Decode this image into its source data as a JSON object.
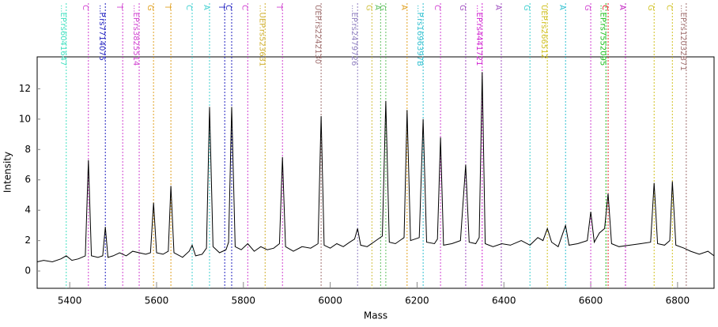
{
  "chart_data": {
    "type": "line",
    "x_label": "Mass",
    "y_label": "Intensity",
    "xlim": [
      5325,
      6884
    ],
    "ylim": [
      -1.14,
      14.1
    ],
    "xticks": [
      5400,
      5600,
      5800,
      6000,
      6200,
      6400,
      6600,
      6800
    ],
    "yticks": [
      0,
      2,
      4,
      6,
      8,
      10,
      12
    ],
    "series": [
      {
        "color": "#000000",
        "x": [
          5325,
          5340,
          5360,
          5380,
          5392,
          5405,
          5420,
          5436,
          5443,
          5450,
          5465,
          5476,
          5482,
          5488,
          5500,
          5515,
          5530,
          5545,
          5560,
          5575,
          5586,
          5593,
          5600,
          5615,
          5627,
          5633,
          5640,
          5660,
          5675,
          5682,
          5690,
          5705,
          5715,
          5722,
          5730,
          5745,
          5760,
          5766,
          5773,
          5781,
          5795,
          5810,
          5825,
          5840,
          5855,
          5870,
          5883,
          5890,
          5897,
          5915,
          5935,
          5955,
          5972,
          5979,
          5986,
          6000,
          6015,
          6030,
          6045,
          6056,
          6063,
          6070,
          6085,
          6100,
          6120,
          6128,
          6136,
          6150,
          6170,
          6177,
          6185,
          6205,
          6214,
          6222,
          6240,
          6247,
          6254,
          6261,
          6280,
          6300,
          6312,
          6320,
          6335,
          6343,
          6350,
          6357,
          6375,
          6395,
          6415,
          6440,
          6460,
          6478,
          6490,
          6500,
          6510,
          6525,
          6542,
          6550,
          6570,
          6592,
          6600,
          6608,
          6620,
          6632,
          6640,
          6648,
          6665,
          6690,
          6715,
          6738,
          6746,
          6754,
          6770,
          6782,
          6788,
          6796,
          6815,
          6830,
          6850,
          6870,
          6884
        ],
        "values": [
          0.6,
          0.7,
          0.6,
          0.8,
          1.0,
          0.7,
          0.8,
          1.0,
          7.3,
          1.0,
          0.9,
          1.0,
          2.9,
          0.9,
          1.0,
          1.2,
          1.0,
          1.3,
          1.2,
          1.1,
          1.2,
          4.5,
          1.2,
          1.1,
          1.3,
          5.6,
          1.2,
          0.9,
          1.3,
          1.7,
          1.0,
          1.1,
          1.5,
          10.8,
          1.6,
          1.2,
          1.4,
          1.9,
          10.8,
          1.6,
          1.4,
          1.8,
          1.3,
          1.6,
          1.4,
          1.5,
          1.8,
          7.5,
          1.6,
          1.3,
          1.6,
          1.5,
          1.8,
          10.2,
          1.7,
          1.5,
          1.8,
          1.6,
          1.9,
          2.1,
          2.8,
          1.7,
          1.6,
          1.9,
          2.3,
          11.2,
          1.9,
          1.8,
          2.2,
          10.6,
          2.0,
          2.2,
          10.0,
          1.9,
          1.8,
          2.1,
          8.8,
          1.7,
          1.8,
          2.0,
          7.0,
          1.9,
          1.8,
          2.2,
          13.1,
          1.8,
          1.6,
          1.8,
          1.7,
          2.0,
          1.7,
          2.2,
          2.0,
          2.8,
          1.9,
          1.6,
          3.0,
          1.7,
          1.8,
          2.0,
          3.9,
          1.9,
          2.5,
          2.8,
          5.1,
          1.8,
          1.6,
          1.7,
          1.8,
          1.9,
          5.8,
          1.8,
          1.7,
          2.0,
          5.9,
          1.7,
          1.5,
          1.3,
          1.1,
          1.3,
          1.0
        ]
      }
    ],
    "markers": [
      {
        "mass": 5392,
        "label": "...EP.rs6041647",
        "color": "#40e0c0"
      },
      {
        "mass": 5443,
        "label": "C",
        "color": "#d040d0"
      },
      {
        "mass": 5482,
        "label": "...P.rs7714075",
        "color": "#2020c0"
      },
      {
        "mass": 5522,
        "label": "T",
        "color": "#d040d0"
      },
      {
        "mass": 5560,
        "label": "...EP.rs3825514",
        "color": "#d040d0"
      },
      {
        "mass": 5593,
        "label": "G",
        "color": "#e0a020"
      },
      {
        "mass": 5633,
        "label": "T",
        "color": "#e0a020"
      },
      {
        "mass": 5682,
        "label": "C",
        "color": "#40d0d0"
      },
      {
        "mass": 5722,
        "label": "A",
        "color": "#40d0d0"
      },
      {
        "mass": 5757,
        "label": "T",
        "color": "#2020c0"
      },
      {
        "mass": 5773,
        "label": "C",
        "color": "#2020c0"
      },
      {
        "mass": 5810,
        "label": "C",
        "color": "#d040d0"
      },
      {
        "mass": 5850,
        "label": "...UEP.rs523631",
        "color": "#d0b030"
      },
      {
        "mass": 5890,
        "label": "T",
        "color": "#d040d0"
      },
      {
        "mass": 5979,
        "label": "UEP.rs2242130",
        "color": "#a07070"
      },
      {
        "mass": 6063,
        "label": "...EP.rs2479726",
        "color": "#9080c0"
      },
      {
        "mass": 6096,
        "label": "G",
        "color": "#d0c040"
      },
      {
        "mass": 6116,
        "label": "A",
        "color": "#60c060"
      },
      {
        "mass": 6128,
        "label": "G",
        "color": "#60c060"
      },
      {
        "mass": 6177,
        "label": "A",
        "color": "#e0a020"
      },
      {
        "mass": 6214,
        "label": "...P.rs1696397B",
        "color": "#30c0d0"
      },
      {
        "mass": 6254,
        "label": "C",
        "color": "#d040d0"
      },
      {
        "mass": 6312,
        "label": "G",
        "color": "#a050c0"
      },
      {
        "mass": 6350,
        "label": "...EP.rs4441721",
        "color": "#d020d0"
      },
      {
        "mass": 6394,
        "label": "A",
        "color": "#a050c0"
      },
      {
        "mass": 6460,
        "label": "G",
        "color": "#40d0d0"
      },
      {
        "mass": 6500,
        "label": "UEP.rs266512",
        "color": "#d0c020"
      },
      {
        "mass": 6542,
        "label": "A",
        "color": "#30c0d0"
      },
      {
        "mass": 6600,
        "label": "G",
        "color": "#d040d0"
      },
      {
        "mass": 6635,
        "label": "...EP.rs7552095",
        "color": "#20c020"
      },
      {
        "mass": 6640,
        "label": "C",
        "color": "#e02020"
      },
      {
        "mass": 6680,
        "label": "A",
        "color": "#c020c0"
      },
      {
        "mass": 6746,
        "label": "G",
        "color": "#d0c020"
      },
      {
        "mass": 6788,
        "label": "C",
        "color": "#d0c020"
      },
      {
        "mass": 6820,
        "label": "...EP.rs12032871",
        "color": "#a07070"
      }
    ]
  }
}
